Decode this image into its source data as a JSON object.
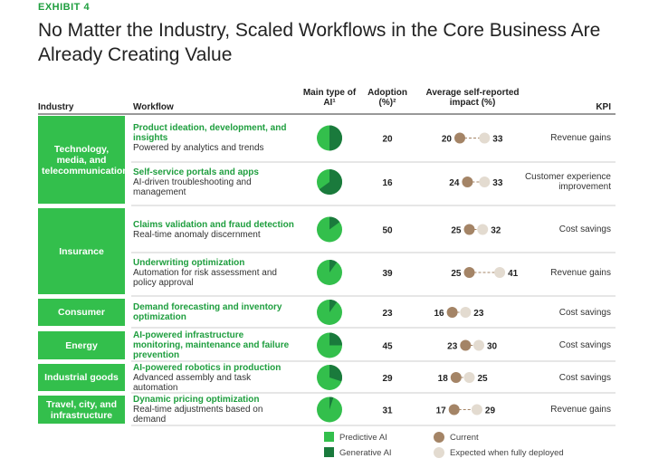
{
  "header": {
    "exhibit": "EXHIBIT 4",
    "title": "No Matter the Industry, Scaled Workflows in the Core Business Are Already Creating Value"
  },
  "columns": {
    "industry": "Industry",
    "workflow": "Workflow",
    "ai_type": "Main type of AI¹",
    "adoption": "Adoption (%)²",
    "impact": "Average self-reported impact (%)",
    "kpi": "KPI"
  },
  "groups": [
    {
      "industry": "Technology, media, and telecommunications",
      "rows": [
        {
          "workflow": "Product ideation, development, and insights",
          "description": "Powered by analytics and trends",
          "predictive_share": 50,
          "adoption": 20,
          "current": 20,
          "expected": 33,
          "kpi": "Revenue gains"
        },
        {
          "workflow": "Self-service portals and apps",
          "description": "AI-driven troubleshooting and management",
          "predictive_share": 35,
          "adoption": 16,
          "current": 24,
          "expected": 33,
          "kpi": "Customer experience improvement"
        }
      ]
    },
    {
      "industry": "Insurance",
      "rows": [
        {
          "workflow": "Claims validation and fraud detection",
          "description": "Real-time anomaly discernment",
          "predictive_share": 85,
          "adoption": 50,
          "current": 25,
          "expected": 32,
          "kpi": "Cost savings"
        },
        {
          "workflow": "Underwriting optimization",
          "description": "Automation for risk assessment and policy approval",
          "predictive_share": 90,
          "adoption": 39,
          "current": 25,
          "expected": 41,
          "kpi": "Revenue gains"
        }
      ]
    },
    {
      "industry": "Consumer",
      "rows": [
        {
          "workflow": "Demand forecasting and inventory optimization",
          "predictive_share": 90,
          "adoption": 23,
          "current": 16,
          "expected": 23,
          "kpi": "Cost savings"
        }
      ]
    },
    {
      "industry": "Energy",
      "rows": [
        {
          "workflow": "AI-powered infrastructure monitoring, maintenance and failure prevention",
          "predictive_share": 75,
          "adoption": 45,
          "current": 23,
          "expected": 30,
          "kpi": "Cost savings"
        }
      ]
    },
    {
      "industry": "Industrial goods",
      "rows": [
        {
          "workflow": "AI-powered robotics in production",
          "description": "Advanced assembly and task automation",
          "predictive_share": 70,
          "adoption": 29,
          "current": 18,
          "expected": 25,
          "kpi": "Cost savings"
        }
      ]
    },
    {
      "industry": "Travel, city, and infrastructure",
      "rows": [
        {
          "workflow": "Dynamic pricing optimization",
          "description": "Real-time adjustments based on demand",
          "predictive_share": 95,
          "adoption": 31,
          "current": 17,
          "expected": 29,
          "kpi": "Revenue gains"
        }
      ]
    }
  ],
  "legend": {
    "predictive": "Predictive AI",
    "generative": "Generative AI",
    "current": "Current",
    "expected": "Expected when fully deployed"
  }
}
